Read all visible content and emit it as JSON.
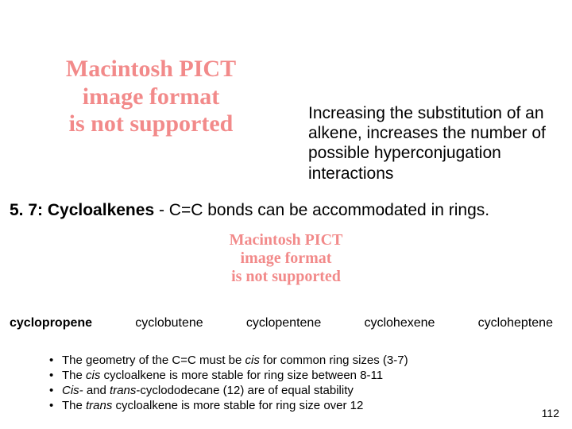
{
  "pict_error": {
    "line1": "Macintosh PICT",
    "line2": "image format",
    "line3": "is not supported",
    "color": "#f28a8a"
  },
  "intro": "Increasing the substitution of an alkene, increases the number of possible hyperconjugation interactions",
  "section": {
    "number": "5. 7:",
    "title_bold": "Cycloalkenes",
    "after": " - C=C bonds can be accommodated in rings."
  },
  "labels": [
    "cyclopropene",
    "cyclobutene",
    "cyclopentene",
    "cyclohexene",
    "cycloheptene"
  ],
  "bullets": [
    {
      "pre": "The geometry of the C=C must be ",
      "it": "cis",
      "post": " for common ring sizes (3-7)"
    },
    {
      "pre": "The ",
      "it": "cis",
      "post": " cycloalkene is more stable for ring size between 8-11"
    },
    {
      "pre": "",
      "it": "Cis-",
      "mid": " and ",
      "it2": "trans",
      "post": "-cyclododecane (12) are of equal stability"
    },
    {
      "pre": "The ",
      "it": "trans",
      "post": " cycloalkene is more stable for ring size over 12"
    }
  ],
  "page_number": "112"
}
